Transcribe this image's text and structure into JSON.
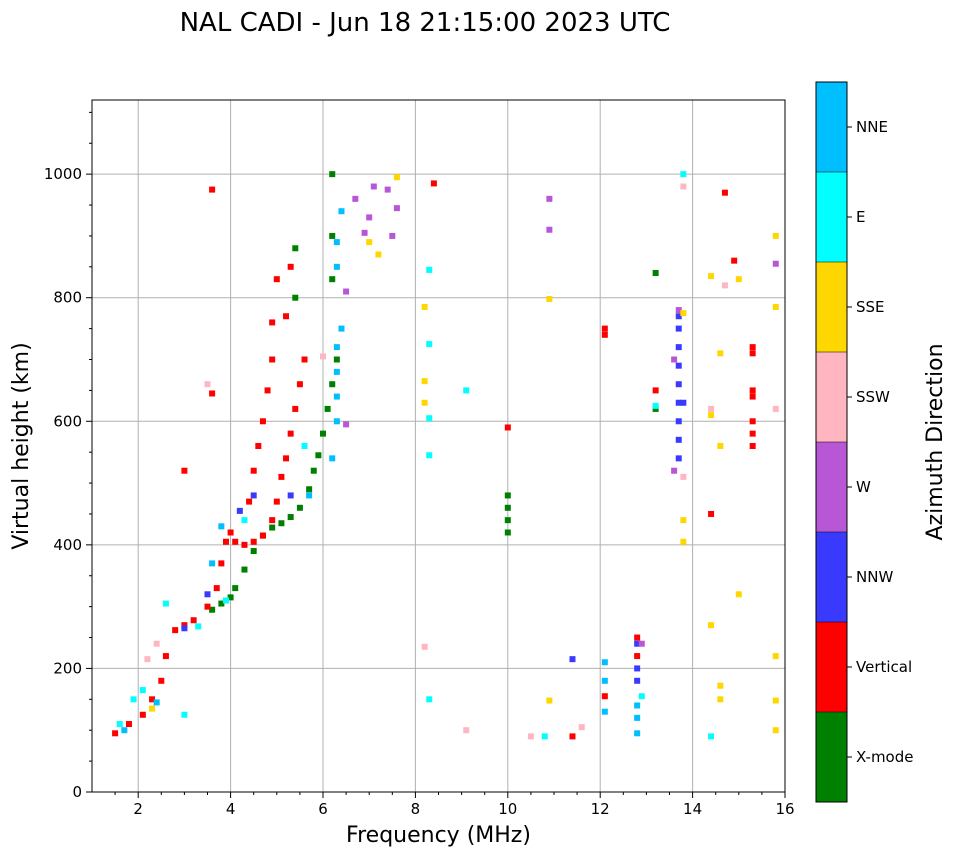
{
  "chart_data": {
    "type": "scatter",
    "title": "NAL CADI - Jun 18 21:15:00 2023 UTC",
    "xlabel": "Frequency (MHz)",
    "ylabel": "Virtual height (km)",
    "xlim": [
      1,
      16
    ],
    "ylim": [
      0,
      1120
    ],
    "xticks": [
      2,
      4,
      6,
      8,
      10,
      12,
      14,
      16
    ],
    "yticks": [
      0,
      200,
      400,
      600,
      800,
      1000
    ],
    "grid": true,
    "colorbar": {
      "label": "Azimuth Direction",
      "categories": [
        {
          "name": "X-mode",
          "color": "#008000"
        },
        {
          "name": "Vertical",
          "color": "#ff0000"
        },
        {
          "name": "NNW",
          "color": "#3a3aff"
        },
        {
          "name": "W",
          "color": "#b857d6"
        },
        {
          "name": "SSW",
          "color": "#ffb6c1"
        },
        {
          "name": "SSE",
          "color": "#ffd700"
        },
        {
          "name": "E",
          "color": "#00ffff"
        },
        {
          "name": "NNE",
          "color": "#00bfff"
        }
      ]
    },
    "series": [
      {
        "name": "X-mode",
        "points": [
          [
            3.6,
            295
          ],
          [
            3.8,
            305
          ],
          [
            4.0,
            315
          ],
          [
            4.1,
            330
          ],
          [
            4.3,
            360
          ],
          [
            4.5,
            390
          ],
          [
            4.7,
            415
          ],
          [
            4.9,
            428
          ],
          [
            5.1,
            435
          ],
          [
            5.3,
            445
          ],
          [
            5.5,
            460
          ],
          [
            5.7,
            490
          ],
          [
            5.8,
            520
          ],
          [
            5.9,
            545
          ],
          [
            6.0,
            580
          ],
          [
            6.1,
            620
          ],
          [
            6.2,
            660
          ],
          [
            6.3,
            700
          ],
          [
            6.2,
            830
          ],
          [
            6.2,
            900
          ],
          [
            6.2,
            1000
          ],
          [
            10.0,
            420
          ],
          [
            10.0,
            440
          ],
          [
            10.0,
            460
          ],
          [
            10.0,
            480
          ],
          [
            13.2,
            620
          ],
          [
            13.2,
            840
          ],
          [
            5.4,
            800
          ],
          [
            5.4,
            880
          ]
        ]
      },
      {
        "name": "Vertical",
        "points": [
          [
            1.5,
            95
          ],
          [
            1.8,
            110
          ],
          [
            2.1,
            125
          ],
          [
            2.3,
            150
          ],
          [
            2.5,
            180
          ],
          [
            2.6,
            220
          ],
          [
            2.8,
            262
          ],
          [
            3.0,
            270
          ],
          [
            3.2,
            278
          ],
          [
            3.5,
            300
          ],
          [
            3.7,
            330
          ],
          [
            3.8,
            370
          ],
          [
            3.9,
            405
          ],
          [
            4.0,
            420
          ],
          [
            4.1,
            405
          ],
          [
            4.3,
            400
          ],
          [
            4.5,
            405
          ],
          [
            4.7,
            415
          ],
          [
            4.9,
            440
          ],
          [
            5.0,
            470
          ],
          [
            5.1,
            510
          ],
          [
            5.2,
            540
          ],
          [
            5.3,
            580
          ],
          [
            5.4,
            620
          ],
          [
            5.5,
            660
          ],
          [
            5.6,
            700
          ],
          [
            4.4,
            470
          ],
          [
            4.5,
            520
          ],
          [
            4.6,
            560
          ],
          [
            4.7,
            600
          ],
          [
            4.8,
            650
          ],
          [
            4.9,
            700
          ],
          [
            4.9,
            760
          ],
          [
            5.0,
            830
          ],
          [
            5.2,
            770
          ],
          [
            5.3,
            850
          ],
          [
            3.6,
            645
          ],
          [
            3.0,
            520
          ],
          [
            3.6,
            975
          ],
          [
            8.4,
            985
          ],
          [
            12.1,
            740
          ],
          [
            12.1,
            750
          ],
          [
            12.1,
            155
          ],
          [
            12.8,
            220
          ],
          [
            12.8,
            250
          ],
          [
            13.2,
            650
          ],
          [
            15.3,
            560
          ],
          [
            15.3,
            580
          ],
          [
            15.3,
            600
          ],
          [
            15.3,
            640
          ],
          [
            15.3,
            650
          ],
          [
            15.3,
            710
          ],
          [
            15.3,
            720
          ],
          [
            14.7,
            970
          ],
          [
            14.9,
            860
          ],
          [
            14.4,
            450
          ],
          [
            10.0,
            590
          ],
          [
            11.4,
            90
          ]
        ]
      },
      {
        "name": "NNW",
        "points": [
          [
            3.0,
            265
          ],
          [
            3.5,
            320
          ],
          [
            4.2,
            455
          ],
          [
            4.5,
            480
          ],
          [
            5.3,
            480
          ],
          [
            11.4,
            215
          ],
          [
            12.8,
            180
          ],
          [
            12.8,
            200
          ],
          [
            12.8,
            240
          ],
          [
            13.7,
            540
          ],
          [
            13.7,
            570
          ],
          [
            13.7,
            600
          ],
          [
            13.7,
            630
          ],
          [
            13.7,
            660
          ],
          [
            13.7,
            690
          ],
          [
            13.7,
            720
          ],
          [
            13.7,
            750
          ],
          [
            13.7,
            770
          ],
          [
            13.8,
            630
          ]
        ]
      },
      {
        "name": "W",
        "points": [
          [
            6.7,
            960
          ],
          [
            6.9,
            905
          ],
          [
            7.0,
            930
          ],
          [
            7.1,
            980
          ],
          [
            7.4,
            975
          ],
          [
            7.6,
            945
          ],
          [
            7.5,
            900
          ],
          [
            10.9,
            960
          ],
          [
            10.9,
            910
          ],
          [
            13.6,
            520
          ],
          [
            13.6,
            700
          ],
          [
            13.7,
            780
          ],
          [
            15.8,
            855
          ],
          [
            6.5,
            595
          ],
          [
            6.5,
            810
          ],
          [
            12.9,
            240
          ]
        ]
      },
      {
        "name": "SSW",
        "points": [
          [
            2.2,
            215
          ],
          [
            2.4,
            240
          ],
          [
            6.0,
            705
          ],
          [
            8.2,
            235
          ],
          [
            9.1,
            100
          ],
          [
            10.5,
            90
          ],
          [
            11.6,
            105
          ],
          [
            13.8,
            510
          ],
          [
            13.8,
            980
          ],
          [
            14.4,
            620
          ],
          [
            14.7,
            820
          ],
          [
            15.8,
            620
          ],
          [
            3.5,
            660
          ]
        ]
      },
      {
        "name": "SSE",
        "points": [
          [
            2.3,
            135
          ],
          [
            7.0,
            890
          ],
          [
            7.2,
            870
          ],
          [
            7.6,
            995
          ],
          [
            8.2,
            785
          ],
          [
            8.2,
            665
          ],
          [
            8.2,
            630
          ],
          [
            10.9,
            148
          ],
          [
            10.9,
            798
          ],
          [
            13.8,
            440
          ],
          [
            13.8,
            405
          ],
          [
            13.8,
            775
          ],
          [
            14.4,
            270
          ],
          [
            14.4,
            610
          ],
          [
            14.4,
            835
          ],
          [
            14.6,
            560
          ],
          [
            14.6,
            710
          ],
          [
            14.6,
            172
          ],
          [
            14.6,
            150
          ],
          [
            15.0,
            320
          ],
          [
            15.0,
            830
          ],
          [
            15.8,
            900
          ],
          [
            15.8,
            785
          ],
          [
            15.8,
            220
          ],
          [
            15.8,
            148
          ],
          [
            15.8,
            100
          ]
        ]
      },
      {
        "name": "E",
        "points": [
          [
            1.6,
            110
          ],
          [
            1.9,
            150
          ],
          [
            2.1,
            165
          ],
          [
            2.6,
            305
          ],
          [
            3.3,
            268
          ],
          [
            3.9,
            310
          ],
          [
            4.3,
            440
          ],
          [
            5.6,
            560
          ],
          [
            8.3,
            845
          ],
          [
            8.3,
            725
          ],
          [
            8.3,
            605
          ],
          [
            8.3,
            545
          ],
          [
            8.3,
            150
          ],
          [
            9.1,
            650
          ],
          [
            10.8,
            90
          ],
          [
            13.2,
            625
          ],
          [
            13.8,
            1000
          ],
          [
            14.4,
            90
          ],
          [
            12.9,
            155
          ],
          [
            3.0,
            125
          ]
        ]
      },
      {
        "name": "NNE",
        "points": [
          [
            1.7,
            100
          ],
          [
            2.4,
            145
          ],
          [
            3.6,
            370
          ],
          [
            3.8,
            430
          ],
          [
            6.2,
            540
          ],
          [
            6.3,
            600
          ],
          [
            6.3,
            640
          ],
          [
            6.3,
            680
          ],
          [
            6.3,
            720
          ],
          [
            6.4,
            750
          ],
          [
            6.3,
            850
          ],
          [
            6.3,
            890
          ],
          [
            6.4,
            940
          ],
          [
            12.1,
            130
          ],
          [
            12.1,
            180
          ],
          [
            12.1,
            210
          ],
          [
            12.8,
            95
          ],
          [
            12.8,
            120
          ],
          [
            12.8,
            140
          ],
          [
            5.7,
            480
          ]
        ]
      }
    ]
  }
}
